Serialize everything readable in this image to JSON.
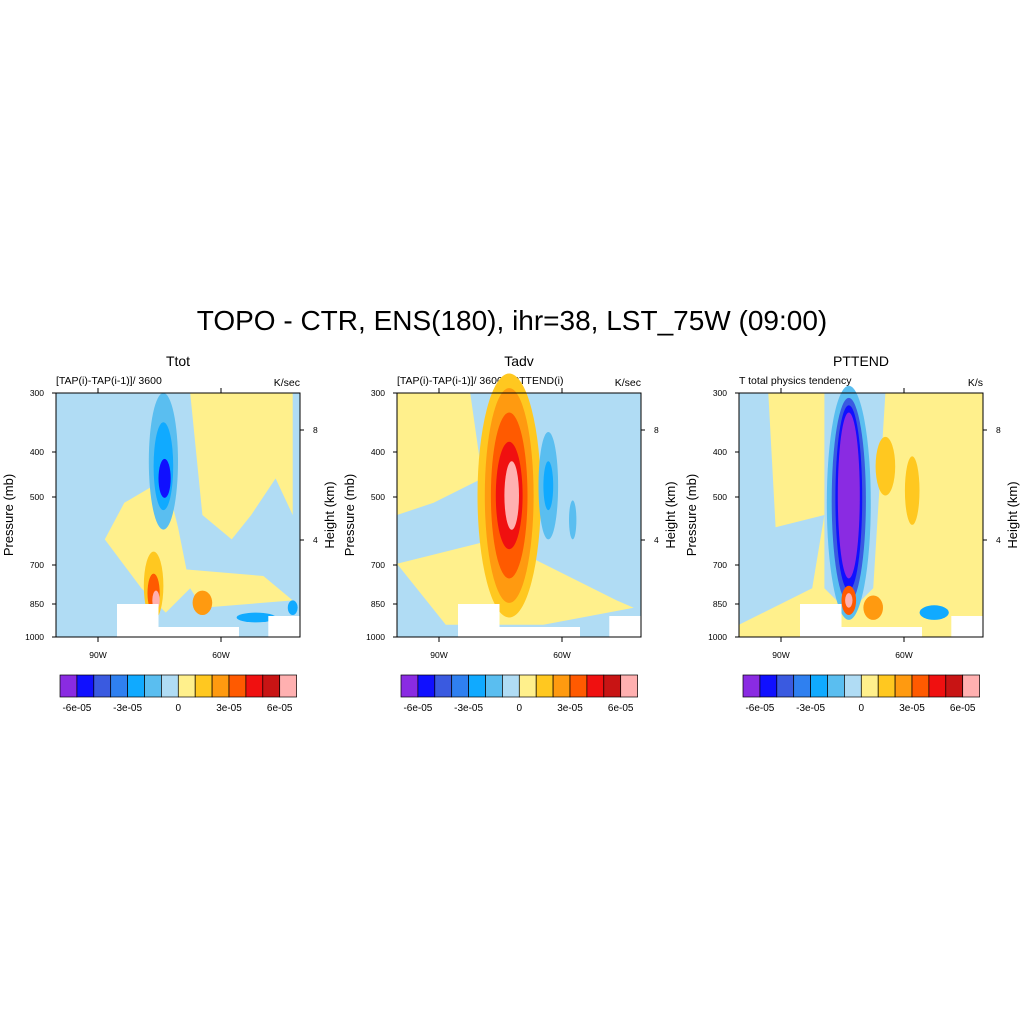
{
  "title": "TOPO - CTR, ENS(180), ihr=38, LST_75W (09:00)",
  "chart_data": [
    {
      "type": "heatmap",
      "title": "Ttot",
      "subtitle_left": "[TAP(i)-TAP(i-1)]/ 3600",
      "subtitle_right": "K/sec",
      "ylabel": "Pressure (mb)",
      "ylabel_right": "Height (km)",
      "y_ticks": [
        "300",
        "400",
        "500",
        "700",
        "850",
        "1000"
      ],
      "y_right_ticks": [
        "8",
        "4"
      ],
      "x_ticks": [
        "90W",
        "60W"
      ],
      "colorbar_labels": [
        "-6e-05",
        "-3e-05",
        "0",
        "3e-05",
        "6e-05"
      ],
      "colorbar_colors": [
        "#8a2be2",
        "#1010ff",
        "#3a5ae0",
        "#2f80f0",
        "#10aaff",
        "#5abef0",
        "#b0dcf4",
        "#fff08c",
        "#ffc820",
        "#ff9a10",
        "#ff5a00",
        "#f01010",
        "#c81414",
        "#ffb0b0"
      ]
    },
    {
      "type": "heatmap",
      "title": "Tadv",
      "subtitle_left": "[TAP(i)-TAP(i-1)]/ 3600 - PTTEND(i)",
      "subtitle_right": "K/sec",
      "ylabel": "Pressure (mb)",
      "ylabel_right": "Height (km)",
      "y_ticks": [
        "300",
        "400",
        "500",
        "700",
        "850",
        "1000"
      ],
      "y_right_ticks": [
        "8",
        "4"
      ],
      "x_ticks": [
        "90W",
        "60W"
      ],
      "colorbar_labels": [
        "-6e-05",
        "-3e-05",
        "0",
        "3e-05",
        "6e-05"
      ],
      "colorbar_colors": [
        "#8a2be2",
        "#1010ff",
        "#3a5ae0",
        "#2f80f0",
        "#10aaff",
        "#5abef0",
        "#b0dcf4",
        "#fff08c",
        "#ffc820",
        "#ff9a10",
        "#ff5a00",
        "#f01010",
        "#c81414",
        "#ffb0b0"
      ]
    },
    {
      "type": "heatmap",
      "title": "PTTEND",
      "subtitle_left": "T total physics tendency",
      "subtitle_right": "K/s",
      "ylabel": "Pressure (mb)",
      "ylabel_right": "Height (km)",
      "y_ticks": [
        "300",
        "400",
        "500",
        "700",
        "850",
        "1000"
      ],
      "y_right_ticks": [
        "8",
        "4"
      ],
      "x_ticks": [
        "90W",
        "60W"
      ],
      "colorbar_labels": [
        "-6e-05",
        "-3e-05",
        "0",
        "3e-05",
        "6e-05"
      ],
      "colorbar_colors": [
        "#8a2be2",
        "#1010ff",
        "#3a5ae0",
        "#2f80f0",
        "#10aaff",
        "#5abef0",
        "#b0dcf4",
        "#fff08c",
        "#ffc820",
        "#ff9a10",
        "#ff5a00",
        "#f01010",
        "#c81414",
        "#ffb0b0"
      ]
    }
  ]
}
